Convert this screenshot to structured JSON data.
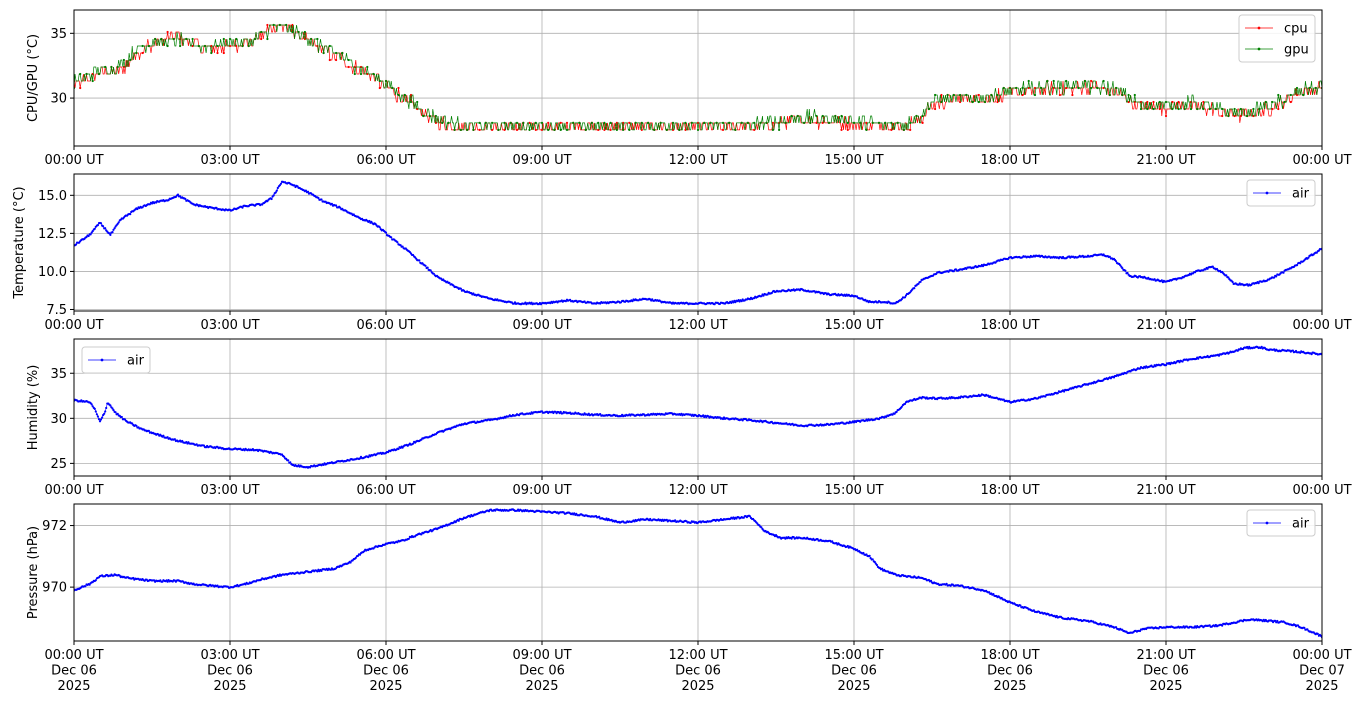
{
  "chart_data": [
    {
      "type": "line",
      "ylabel": "CPU/GPU (°C)",
      "ylim": [
        26.3,
        36.8
      ],
      "yticks": [
        30,
        35
      ],
      "xlim_hours": [
        0,
        24
      ],
      "xticks": [
        "00:00 UT",
        "03:00 UT",
        "06:00 UT",
        "09:00 UT",
        "12:00 UT",
        "15:00 UT",
        "18:00 UT",
        "21:00 UT",
        "00:00 UT"
      ],
      "grid": true,
      "legend_position": "upper-right",
      "series": [
        {
          "name": "cpu",
          "color": "#ff0000",
          "x_hours": [
            0,
            0.3,
            0.5,
            0.8,
            1.0,
            1.2,
            1.5,
            2.0,
            2.5,
            3.0,
            3.5,
            3.8,
            4.0,
            4.2,
            4.5,
            5.0,
            5.5,
            6.0,
            6.3,
            6.5,
            6.8,
            7.0,
            7.3,
            7.5,
            8.0,
            9.0,
            10.0,
            11.0,
            12.0,
            13.0,
            13.5,
            14.0,
            14.5,
            15.0,
            15.5,
            16.0,
            16.3,
            16.5,
            17.0,
            17.5,
            18.0,
            18.5,
            19.0,
            19.5,
            20.0,
            20.3,
            20.5,
            21.0,
            21.5,
            22.0,
            22.5,
            23.0,
            23.3,
            23.5,
            24.0
          ],
          "values": [
            31.0,
            31.5,
            32.0,
            32.0,
            32.5,
            33.5,
            34.2,
            34.8,
            33.8,
            34.0,
            34.5,
            35.5,
            35.5,
            35.3,
            34.3,
            33.3,
            32.2,
            31.0,
            30.0,
            29.5,
            28.5,
            28.2,
            27.8,
            27.8,
            27.8,
            27.8,
            27.8,
            27.8,
            27.8,
            27.8,
            28.0,
            28.3,
            28.2,
            28.0,
            27.9,
            27.8,
            28.5,
            29.5,
            30.0,
            30.0,
            30.3,
            30.6,
            30.7,
            30.8,
            30.6,
            29.8,
            29.3,
            29.3,
            29.5,
            29.0,
            28.6,
            29.2,
            29.8,
            30.4,
            30.8
          ]
        },
        {
          "name": "gpu",
          "color": "#008000",
          "x_hours": [
            0,
            0.3,
            0.5,
            0.8,
            1.0,
            1.2,
            1.5,
            2.0,
            2.5,
            3.0,
            3.5,
            3.8,
            4.0,
            4.2,
            4.5,
            5.0,
            5.5,
            6.0,
            6.3,
            6.5,
            6.8,
            7.0,
            7.3,
            7.5,
            8.0,
            9.0,
            10.0,
            11.0,
            12.0,
            13.0,
            13.5,
            14.0,
            14.5,
            15.0,
            15.5,
            16.0,
            16.3,
            16.5,
            17.0,
            17.5,
            18.0,
            18.5,
            19.0,
            19.5,
            20.0,
            20.3,
            20.5,
            21.0,
            21.5,
            22.0,
            22.5,
            23.0,
            23.3,
            23.5,
            24.0
          ],
          "values": [
            31.3,
            31.7,
            32.2,
            32.3,
            32.8,
            33.8,
            34.3,
            34.5,
            34.0,
            34.2,
            34.6,
            35.4,
            35.6,
            35.3,
            34.5,
            33.5,
            32.3,
            31.2,
            30.2,
            29.7,
            28.8,
            28.4,
            28.0,
            27.9,
            27.9,
            27.9,
            27.9,
            27.9,
            27.9,
            27.9,
            28.2,
            28.5,
            28.4,
            28.2,
            28.0,
            28.0,
            28.7,
            29.7,
            30.0,
            30.0,
            30.5,
            30.8,
            30.9,
            30.9,
            30.7,
            29.9,
            29.5,
            29.5,
            29.6,
            29.1,
            28.8,
            29.4,
            29.9,
            30.5,
            30.9
          ]
        }
      ]
    },
    {
      "type": "line",
      "ylabel": "Temperature (°C)",
      "ylim": [
        7.4,
        16.4
      ],
      "yticks": [
        7.5,
        10.0,
        12.5,
        15.0
      ],
      "xlim_hours": [
        0,
        24
      ],
      "xticks": [
        "00:00 UT",
        "03:00 UT",
        "06:00 UT",
        "09:00 UT",
        "12:00 UT",
        "15:00 UT",
        "18:00 UT",
        "21:00 UT",
        "00:00 UT"
      ],
      "grid": true,
      "legend_position": "upper-right",
      "series": [
        {
          "name": "air",
          "color": "#0000ff",
          "x_hours": [
            0,
            0.3,
            0.5,
            0.6,
            0.7,
            0.9,
            1.2,
            1.5,
            1.8,
            2.0,
            2.3,
            2.6,
            3.0,
            3.3,
            3.6,
            3.8,
            4.0,
            4.2,
            4.5,
            4.8,
            5.1,
            5.5,
            5.8,
            6.1,
            6.4,
            6.7,
            7.0,
            7.5,
            8.0,
            8.5,
            9.0,
            9.5,
            10.0,
            10.5,
            11.0,
            11.5,
            12.0,
            12.5,
            13.0,
            13.5,
            14.0,
            14.5,
            15.0,
            15.3,
            15.6,
            15.8,
            16.0,
            16.3,
            16.6,
            17.0,
            17.5,
            18.0,
            18.5,
            19.0,
            19.5,
            19.8,
            20.0,
            20.3,
            20.6,
            21.0,
            21.3,
            21.6,
            21.9,
            22.1,
            22.3,
            22.6,
            23.0,
            23.5,
            24.0
          ],
          "values": [
            11.7,
            12.4,
            13.2,
            12.8,
            12.4,
            13.4,
            14.1,
            14.5,
            14.7,
            15.0,
            14.4,
            14.2,
            14.0,
            14.3,
            14.4,
            14.8,
            15.9,
            15.7,
            15.2,
            14.6,
            14.2,
            13.5,
            13.1,
            12.2,
            11.4,
            10.5,
            9.6,
            8.7,
            8.2,
            7.9,
            7.9,
            8.1,
            7.9,
            8.0,
            8.2,
            7.9,
            7.9,
            7.9,
            8.2,
            8.7,
            8.8,
            8.5,
            8.4,
            8.0,
            8.0,
            7.9,
            8.4,
            9.4,
            9.9,
            10.1,
            10.4,
            10.9,
            11.0,
            10.9,
            11.0,
            11.1,
            10.8,
            9.7,
            9.6,
            9.3,
            9.6,
            10.0,
            10.3,
            9.9,
            9.2,
            9.1,
            9.5,
            10.4,
            11.5
          ]
        }
      ]
    },
    {
      "type": "line",
      "ylabel": "Humidity (%)",
      "ylim": [
        23.6,
        38.8
      ],
      "yticks": [
        25,
        30,
        35
      ],
      "xlim_hours": [
        0,
        24
      ],
      "xticks": [
        "00:00 UT",
        "03:00 UT",
        "06:00 UT",
        "09:00 UT",
        "12:00 UT",
        "15:00 UT",
        "18:00 UT",
        "21:00 UT",
        "00:00 UT"
      ],
      "grid": true,
      "legend_position": "upper-left",
      "series": [
        {
          "name": "air",
          "color": "#0000ff",
          "x_hours": [
            0,
            0.3,
            0.4,
            0.5,
            0.6,
            0.65,
            0.8,
            1.0,
            1.3,
            1.6,
            2.0,
            2.5,
            3.0,
            3.5,
            4.0,
            4.2,
            4.5,
            5.0,
            5.5,
            6.0,
            6.5,
            7.0,
            7.5,
            8.0,
            8.5,
            9.0,
            9.5,
            10.0,
            10.5,
            11.0,
            11.5,
            12.0,
            12.5,
            13.0,
            13.5,
            14.0,
            14.5,
            15.0,
            15.5,
            15.8,
            16.0,
            16.3,
            16.6,
            17.0,
            17.5,
            18.0,
            18.5,
            19.0,
            19.5,
            20.0,
            20.5,
            21.0,
            21.5,
            22.0,
            22.3,
            22.5,
            22.8,
            23.0,
            23.5,
            24.0
          ],
          "values": [
            32.0,
            31.8,
            31.0,
            29.6,
            30.8,
            31.8,
            30.6,
            29.7,
            28.8,
            28.2,
            27.5,
            26.9,
            26.6,
            26.5,
            26.0,
            24.8,
            24.6,
            25.1,
            25.6,
            26.2,
            27.2,
            28.4,
            29.4,
            29.8,
            30.4,
            30.7,
            30.6,
            30.4,
            30.3,
            30.4,
            30.5,
            30.3,
            30.0,
            29.8,
            29.5,
            29.2,
            29.3,
            29.6,
            30.0,
            30.6,
            31.8,
            32.3,
            32.2,
            32.3,
            32.6,
            31.8,
            32.2,
            33.0,
            33.8,
            34.6,
            35.6,
            36.0,
            36.6,
            37.0,
            37.4,
            37.8,
            37.9,
            37.6,
            37.4,
            37.1
          ]
        }
      ]
    },
    {
      "type": "line",
      "ylabel": "Pressure (hPa)",
      "ylim": [
        968.25,
        972.7
      ],
      "yticks": [
        970,
        972
      ],
      "xlim_hours": [
        0,
        24
      ],
      "xticks": [
        "00:00 UT\nDec 06\n2025",
        "03:00 UT\nDec 06\n2025",
        "06:00 UT\nDec 06\n2025",
        "09:00 UT\nDec 06\n2025",
        "12:00 UT\nDec 06\n2025",
        "15:00 UT\nDec 06\n2025",
        "18:00 UT\nDec 06\n2025",
        "21:00 UT\nDec 06\n2025",
        "00:00 UT\nDec 07\n2025"
      ],
      "grid": true,
      "legend_position": "upper-right",
      "series": [
        {
          "name": "air",
          "color": "#0000ff",
          "x_hours": [
            0,
            0.3,
            0.5,
            0.8,
            1.0,
            1.5,
            2.0,
            2.3,
            2.6,
            3.0,
            3.3,
            3.6,
            4.0,
            4.5,
            5.0,
            5.3,
            5.6,
            6.0,
            6.3,
            6.6,
            7.0,
            7.5,
            8.0,
            8.5,
            9.0,
            9.5,
            10.0,
            10.5,
            11.0,
            11.5,
            12.0,
            12.5,
            13.0,
            13.3,
            13.6,
            14.0,
            14.5,
            15.0,
            15.3,
            15.5,
            15.8,
            16.0,
            16.3,
            16.6,
            17.0,
            17.5,
            18.0,
            18.5,
            19.0,
            19.5,
            20.0,
            20.3,
            20.6,
            21.0,
            21.5,
            22.0,
            22.3,
            22.6,
            23.0,
            23.3,
            23.6,
            24.0
          ],
          "values": [
            969.9,
            970.1,
            970.35,
            970.4,
            970.3,
            970.2,
            970.2,
            970.1,
            970.05,
            970.0,
            970.1,
            970.25,
            970.4,
            970.5,
            970.6,
            970.8,
            971.2,
            971.4,
            971.5,
            971.7,
            971.9,
            972.25,
            972.5,
            972.5,
            972.45,
            972.4,
            972.3,
            972.1,
            972.2,
            972.15,
            972.1,
            972.2,
            972.3,
            971.8,
            971.6,
            971.6,
            971.5,
            971.25,
            971.0,
            970.6,
            970.4,
            970.35,
            970.3,
            970.1,
            970.05,
            969.9,
            969.5,
            969.2,
            969.0,
            968.9,
            968.7,
            968.5,
            968.65,
            968.7,
            968.7,
            968.75,
            968.85,
            968.95,
            968.9,
            968.85,
            968.7,
            968.4
          ]
        }
      ]
    }
  ]
}
